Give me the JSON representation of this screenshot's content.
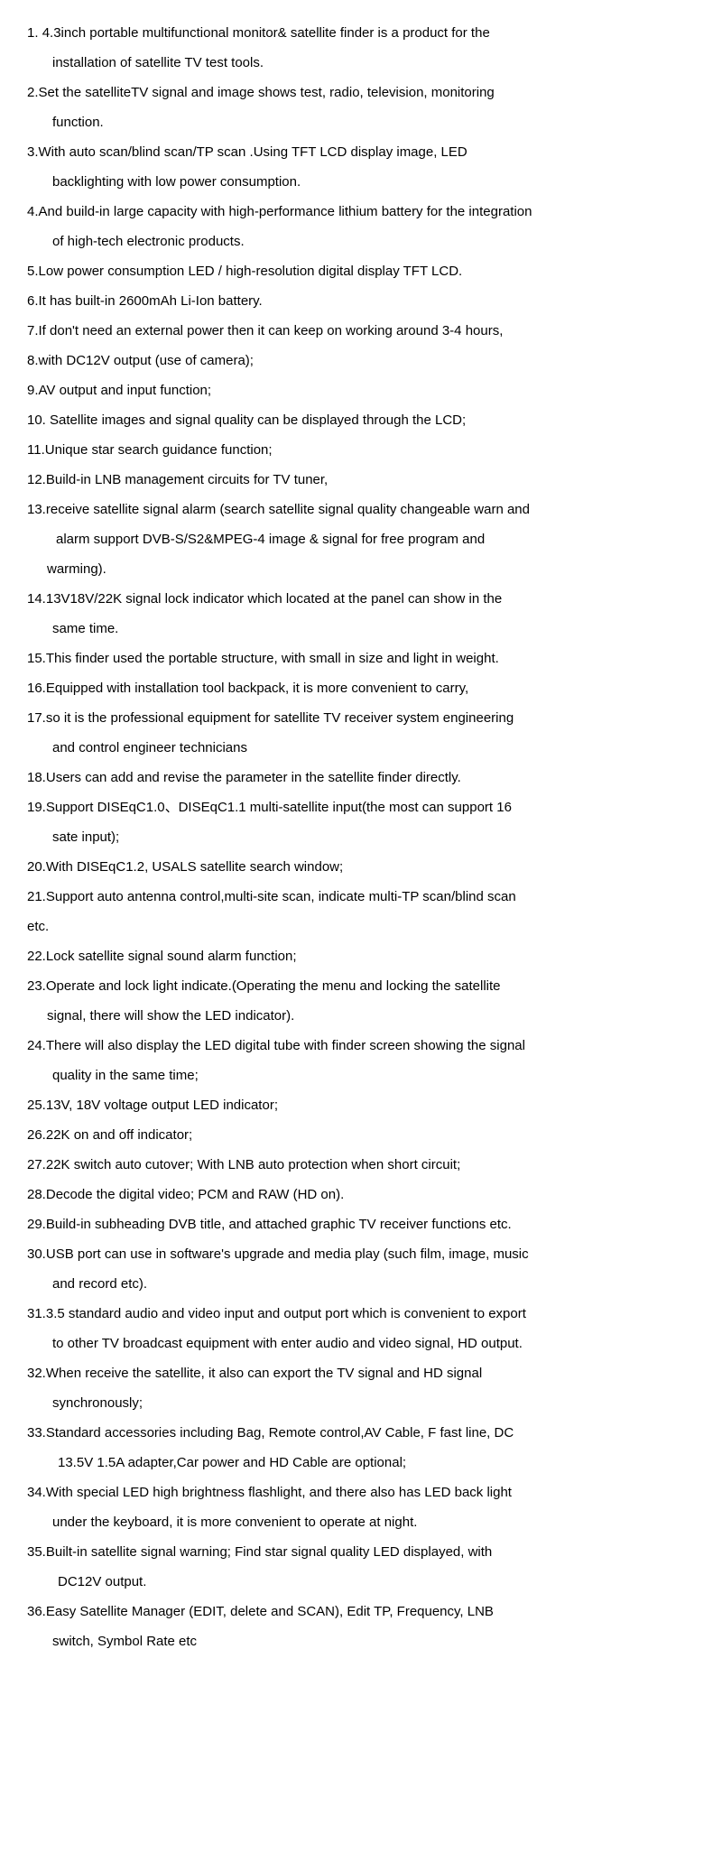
{
  "text_color": "#000000",
  "background_color": "#ffffff",
  "font_size": 15,
  "line_height": 2.2,
  "items": [
    {
      "num": "1.",
      "lines": [
        "4.3inch portable multifunctional monitor& satellite finder is a product for the",
        "installation of satellite TV test tools."
      ],
      "first_indent": " "
    },
    {
      "num": "2.",
      "lines": [
        "Set the satelliteTV signal and image shows test, radio, television, monitoring",
        "function."
      ],
      "first_indent": ""
    },
    {
      "num": "3.",
      "lines": [
        "With auto scan/blind scan/TP scan .Using TFT LCD display image, LED",
        "backlighting with low power consumption."
      ],
      "first_indent": ""
    },
    {
      "num": "4.",
      "lines": [
        "And build-in large capacity with high-performance lithium battery for the integration",
        "of high-tech electronic products."
      ],
      "first_indent": ""
    },
    {
      "num": "5.",
      "lines": [
        "Low power consumption LED / high-resolution digital display TFT LCD."
      ],
      "first_indent": ""
    },
    {
      "num": "6.",
      "lines": [
        "It has built-in 2600mAh Li-Ion battery."
      ],
      "first_indent": ""
    },
    {
      "num": "7.",
      "lines": [
        "If don't need an external power then it can keep on working around 3-4 hours,"
      ],
      "first_indent": ""
    },
    {
      "num": "8.",
      "lines": [
        "with DC12V output (use of camera);"
      ],
      "first_indent": ""
    },
    {
      "num": "9.",
      "lines": [
        "AV output and input function;"
      ],
      "first_indent": ""
    },
    {
      "num": "10.",
      "lines": [
        "Satellite images and signal quality can be displayed through the LCD;"
      ],
      "first_indent": " "
    },
    {
      "num": "11.",
      "lines": [
        "Unique star search guidance function;"
      ],
      "first_indent": ""
    },
    {
      "num": "12.",
      "lines": [
        "Build-in LNB management circuits for TV tuner,"
      ],
      "first_indent": ""
    },
    {
      "num": "13.",
      "lines": [
        "receive satellite signal alarm (search satellite signal quality changeable warn and",
        "alarm support DVB-S/S2&MPEG-4 image & signal for free program and",
        "warming)."
      ],
      "first_indent": "",
      "indent_override": [
        null,
        32,
        22
      ]
    },
    {
      "num": "14.",
      "lines": [
        "13V18V/22K signal lock indicator which located at the panel can show in the",
        "same time."
      ],
      "first_indent": ""
    },
    {
      "num": "15.",
      "lines": [
        "This finder used the portable structure, with small in size and light in weight."
      ],
      "first_indent": ""
    },
    {
      "num": "16.",
      "lines": [
        "Equipped with installation tool backpack, it is more convenient to carry,"
      ],
      "first_indent": ""
    },
    {
      "num": "17.",
      "lines": [
        "so it is the professional equipment for satellite TV receiver system engineering",
        "and control engineer technicians"
      ],
      "first_indent": ""
    },
    {
      "num": "18.",
      "lines": [
        "Users can add and revise the parameter in the satellite finder directly."
      ],
      "first_indent": ""
    },
    {
      "num": "19.",
      "lines": [
        "Support DISEqC1.0、DISEqC1.1 multi-satellite input(the most can support 16",
        "sate input);"
      ],
      "first_indent": ""
    },
    {
      "num": "20.",
      "lines": [
        "With DISEqC1.2, USALS satellite search window;"
      ],
      "first_indent": ""
    },
    {
      "num": "21.",
      "lines": [
        "Support auto antenna control,multi-site scan, indicate multi-TP scan/blind scan",
        "etc."
      ],
      "first_indent": "",
      "indent_override": [
        null,
        0
      ]
    },
    {
      "num": "22.",
      "lines": [
        "Lock satellite signal sound alarm function;"
      ],
      "first_indent": ""
    },
    {
      "num": "23.",
      "lines": [
        "Operate and lock light indicate.(Operating the menu and locking the satellite",
        "signal, there will show the LED indicator)."
      ],
      "first_indent": "",
      "indent_override": [
        null,
        22
      ]
    },
    {
      "num": "24.",
      "lines": [
        "There will also display the LED digital tube with finder screen showing the signal",
        "quality in the same time;"
      ],
      "first_indent": ""
    },
    {
      "num": "25.",
      "lines": [
        "13V, 18V voltage output LED indicator;"
      ],
      "first_indent": ""
    },
    {
      "num": "26.",
      "lines": [
        "22K on and off indicator;"
      ],
      "first_indent": ""
    },
    {
      "num": "27.",
      "lines": [
        "22K switch auto cutover; With LNB auto protection when short circuit;"
      ],
      "first_indent": ""
    },
    {
      "num": "28.",
      "lines": [
        "Decode the digital video; PCM and RAW (HD on)."
      ],
      "first_indent": ""
    },
    {
      "num": "29.",
      "lines": [
        "Build-in subheading DVB title, and attached graphic TV receiver functions etc."
      ],
      "first_indent": ""
    },
    {
      "num": "30.",
      "lines": [
        "USB port can use in software's upgrade and media play (such film, image, music",
        "and record etc)."
      ],
      "first_indent": ""
    },
    {
      "num": "31.",
      "lines": [
        "3.5 standard audio and video input and output port which is convenient to export",
        "to other TV broadcast equipment with enter audio and video signal, HD output."
      ],
      "first_indent": ""
    },
    {
      "num": "32.",
      "lines": [
        "When receive the satellite, it also can export the TV signal and HD signal",
        "synchronously;"
      ],
      "first_indent": ""
    },
    {
      "num": "33.",
      "lines": [
        "Standard accessories including Bag, Remote control,AV Cable,   F fast line, DC",
        "13.5V 1.5A adapter,Car power and HD Cable  are optional;"
      ],
      "first_indent": "",
      "indent_override": [
        null,
        34
      ]
    },
    {
      "num": "34.",
      "lines": [
        "With special LED high brightness flashlight, and there also has LED back light",
        "under the keyboard, it is more convenient to operate at night."
      ],
      "first_indent": ""
    },
    {
      "num": "35.",
      "lines": [
        "Built-in satellite signal warning; Find star signal quality LED displayed, with",
        "DC12V output."
      ],
      "first_indent": "",
      "indent_override": [
        null,
        34
      ]
    },
    {
      "num": "36.",
      "lines": [
        "Easy Satellite Manager (EDIT, delete and SCAN), Edit TP, Frequency, LNB",
        "switch, Symbol Rate etc"
      ],
      "first_indent": ""
    }
  ]
}
